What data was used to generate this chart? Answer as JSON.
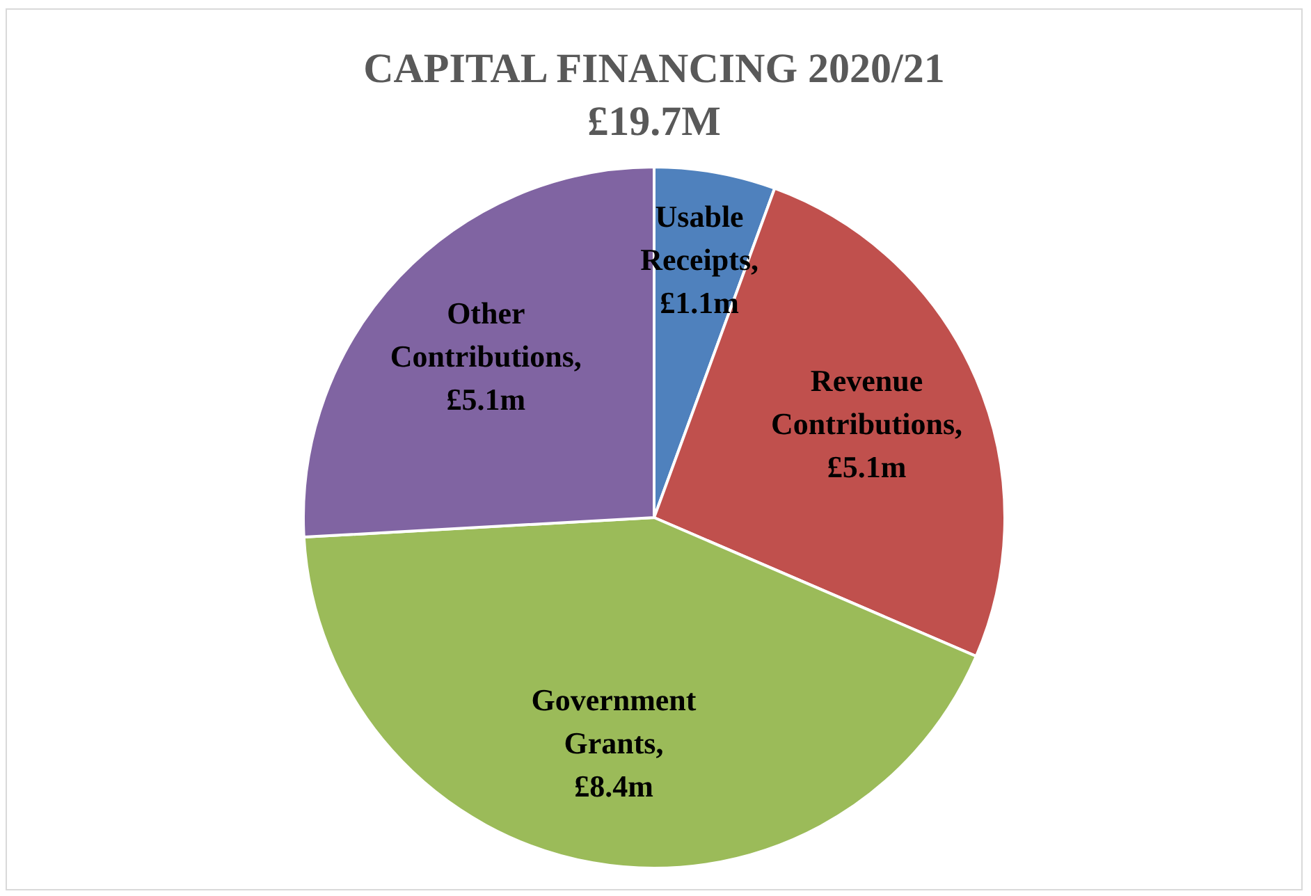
{
  "chart_data": {
    "type": "pie",
    "title": "CAPITAL FINANCING 2020/21",
    "subtitle": "£19.7M",
    "categories": [
      "Usable Receipts",
      "Revenue Contributions",
      "Government Grants",
      "Other Contributions"
    ],
    "values": [
      1.1,
      5.1,
      8.4,
      5.1
    ],
    "value_labels": [
      ", £1.1m",
      ", £5.1m",
      ", £8.4m",
      ", £5.1m"
    ],
    "colors": [
      "#4f81bd",
      "#c0504d",
      "#9bbb59",
      "#8064a2"
    ],
    "legend": false
  }
}
